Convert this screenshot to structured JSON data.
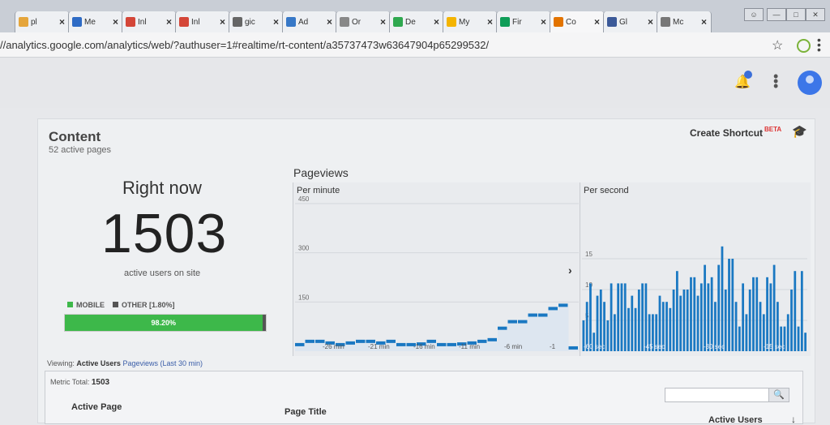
{
  "browser": {
    "tabs": [
      {
        "label": "pl",
        "color": "#e5a53b"
      },
      {
        "label": "Me",
        "color": "#2e6bc5"
      },
      {
        "label": "Inl",
        "color": "#d44638"
      },
      {
        "label": "Inl",
        "color": "#d44638"
      },
      {
        "label": "gic",
        "color": "#666666"
      },
      {
        "label": "Ad",
        "color": "#3778c7"
      },
      {
        "label": "Or",
        "color": "#888888"
      },
      {
        "label": "De",
        "color": "#2fa84f"
      },
      {
        "label": "My",
        "color": "#f4b400"
      },
      {
        "label": "Fir",
        "color": "#0f9d58"
      },
      {
        "label": "Co",
        "color": "#e37400"
      },
      {
        "label": "Gl",
        "color": "#3b5998"
      },
      {
        "label": "Mc",
        "color": "#777777"
      }
    ],
    "url": "//analytics.google.com/analytics/web/?authuser=1#realtime/rt-content/a35737473w63647904p65299532/"
  },
  "header": {
    "create_shortcut": "Create Shortcut",
    "beta": "BETA"
  },
  "content": {
    "title": "Content",
    "subtitle": "52 active pages",
    "right_now": "Right now",
    "active_users": "1503",
    "active_users_label": "active users on site",
    "mobile_label": "MOBILE",
    "other_label": "OTHER [1.80%]",
    "mobile_percent": "98.20%",
    "mobile_fraction": 0.982,
    "mobile_color": "#3db84a",
    "other_color": "#555555"
  },
  "pageviews": {
    "title": "Pageviews",
    "per_minute": "Per minute",
    "per_second": "Per second"
  },
  "chart_data": [
    {
      "type": "bar",
      "title": "Per minute",
      "y_ticks": [
        "450",
        "300",
        "150"
      ],
      "ylim": [
        0,
        450
      ],
      "x_tick_labels": [
        "-26 min",
        "-21 min",
        "-16 min",
        "-11 min",
        "-6 min",
        "-1"
      ],
      "values": [
        20,
        30,
        30,
        25,
        20,
        25,
        30,
        30,
        25,
        30,
        20,
        20,
        22,
        30,
        20,
        20,
        22,
        25,
        30,
        35,
        70,
        90,
        90,
        110,
        110,
        130,
        140,
        10
      ],
      "color": "#1a78c2"
    },
    {
      "type": "bar",
      "title": "Per second",
      "y_ticks": [
        "15",
        "10",
        "5"
      ],
      "ylim": [
        0,
        20
      ],
      "x_tick_labels": [
        "-60 sec",
        "-45 sec",
        "-30 sec",
        "-15 sec"
      ],
      "values": [
        5,
        8,
        11,
        3,
        9,
        10,
        8,
        5,
        11,
        6,
        11,
        11,
        11,
        7,
        9,
        7,
        10,
        11,
        11,
        6,
        6,
        6,
        9,
        8,
        8,
        7,
        10,
        13,
        9,
        10,
        10,
        12,
        12,
        9,
        11,
        14,
        11,
        12,
        8,
        14,
        17,
        10,
        15,
        15,
        8,
        4,
        11,
        6,
        10,
        12,
        12,
        8,
        6,
        12,
        11,
        14,
        8,
        4,
        4,
        6,
        10,
        13,
        4,
        13,
        3
      ],
      "color": "#1a78c2"
    }
  ],
  "viewing": {
    "label": "Viewing:",
    "active": "Active Users",
    "other": "Pageviews (Last 30 min)"
  },
  "table": {
    "metric_label": "Metric Total:",
    "metric_value": "1503",
    "col1": "Active Page",
    "col2": "Page Title",
    "col3": "Active Users"
  }
}
